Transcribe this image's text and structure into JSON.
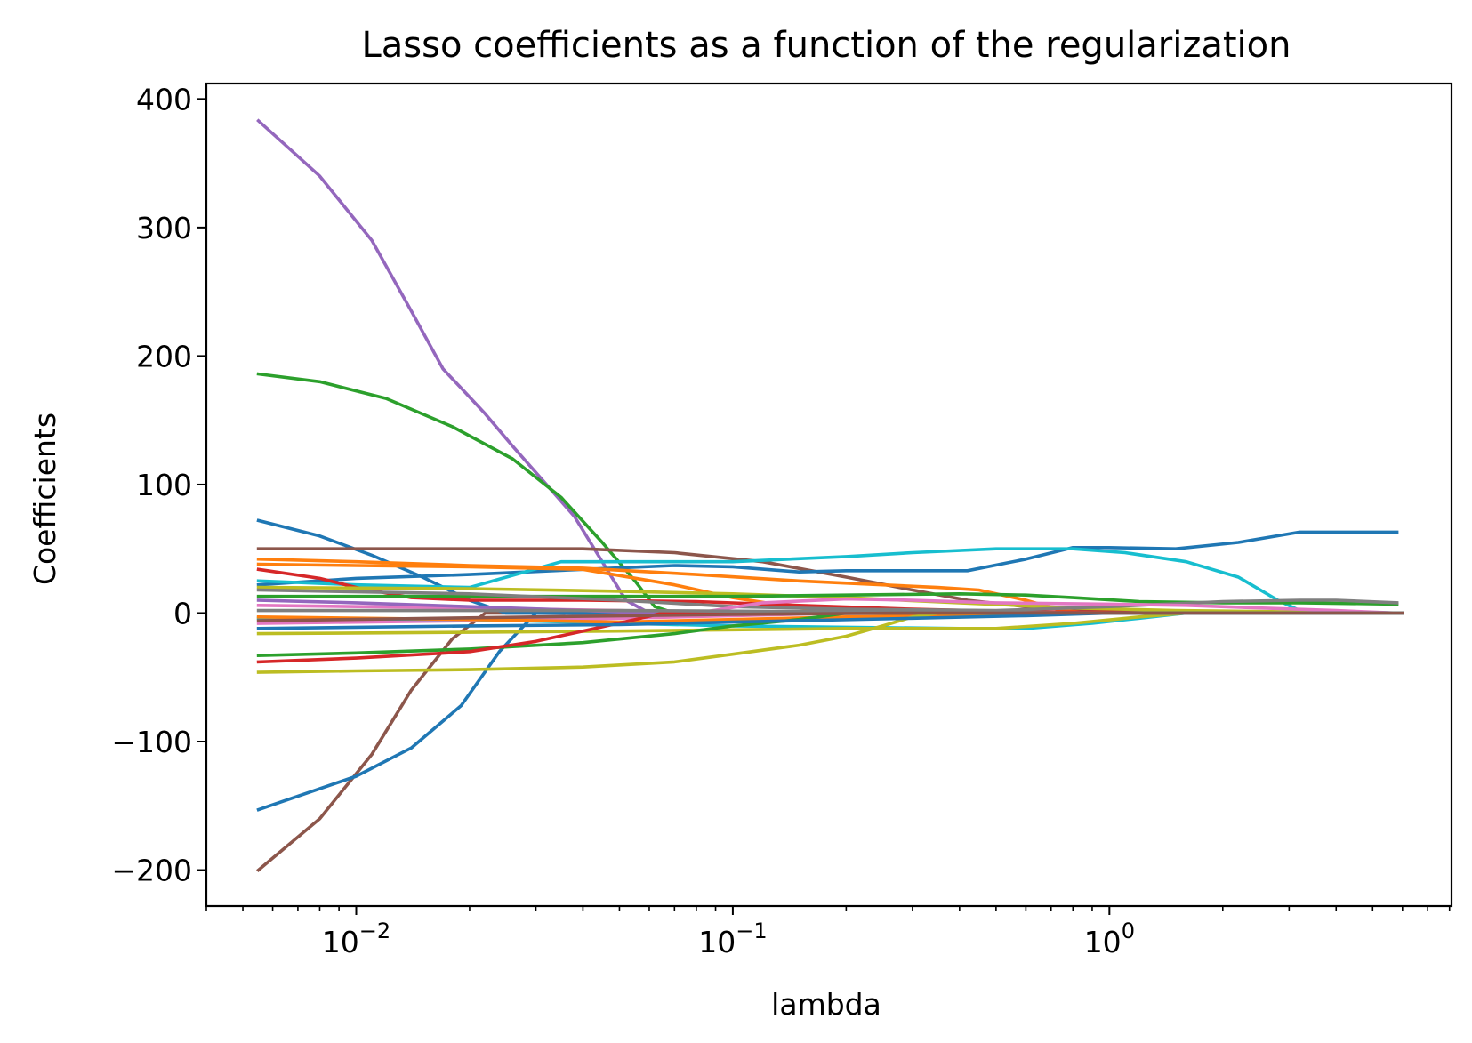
{
  "chart_data": {
    "type": "line",
    "title": "Lasso coefficients as a function of the regularization",
    "xlabel": "lambda",
    "ylabel": "Coefficients",
    "xscale": "log",
    "xlim": [
      0.004,
      8.1
    ],
    "ylim": [
      -228,
      412
    ],
    "xticks": [
      {
        "value": 0.01,
        "base": "10",
        "exp": "−2"
      },
      {
        "value": 0.1,
        "base": "10",
        "exp": "−1"
      },
      {
        "value": 1,
        "base": "10",
        "exp": "0"
      }
    ],
    "yticks": [
      {
        "value": 400,
        "label": "400"
      },
      {
        "value": 300,
        "label": "300"
      },
      {
        "value": 200,
        "label": "200"
      },
      {
        "value": 100,
        "label": "100"
      },
      {
        "value": 0,
        "label": "0"
      },
      {
        "value": -100,
        "label": "−100"
      },
      {
        "value": -200,
        "label": "−200"
      }
    ],
    "grid": false,
    "legend": "none",
    "series": [
      {
        "color": "#9467bd",
        "points": [
          [
            0.0055,
            383
          ],
          [
            0.008,
            340
          ],
          [
            0.011,
            290
          ],
          [
            0.014,
            235
          ],
          [
            0.017,
            190
          ],
          [
            0.019,
            175
          ],
          [
            0.022,
            155
          ],
          [
            0.026,
            130
          ],
          [
            0.032,
            100
          ],
          [
            0.038,
            75
          ],
          [
            0.045,
            40
          ],
          [
            0.052,
            10
          ],
          [
            0.06,
            0
          ],
          [
            6,
            0
          ]
        ]
      },
      {
        "color": "#2ca02c",
        "points": [
          [
            0.0055,
            186
          ],
          [
            0.008,
            180
          ],
          [
            0.012,
            167
          ],
          [
            0.018,
            145
          ],
          [
            0.026,
            120
          ],
          [
            0.035,
            90
          ],
          [
            0.045,
            55
          ],
          [
            0.055,
            25
          ],
          [
            0.062,
            5
          ],
          [
            0.07,
            0
          ],
          [
            6,
            0
          ]
        ]
      },
      {
        "color": "#8c564b",
        "points": [
          [
            0.0055,
            -200
          ],
          [
            0.008,
            -160
          ],
          [
            0.011,
            -110
          ],
          [
            0.014,
            -60
          ],
          [
            0.018,
            -20
          ],
          [
            0.022,
            0
          ],
          [
            6,
            0
          ]
        ]
      },
      {
        "color": "#1f77b4",
        "points": [
          [
            0.0055,
            -153
          ],
          [
            0.01,
            -127
          ],
          [
            0.014,
            -105
          ],
          [
            0.019,
            -72
          ],
          [
            0.024,
            -30
          ],
          [
            0.03,
            0
          ],
          [
            6,
            0
          ]
        ]
      },
      {
        "color": "#1f77b4",
        "points": [
          [
            0.0055,
            72
          ],
          [
            0.008,
            60
          ],
          [
            0.011,
            45
          ],
          [
            0.015,
            28
          ],
          [
            0.02,
            10
          ],
          [
            0.025,
            0
          ],
          [
            6,
            0
          ]
        ]
      },
      {
        "color": "#8c564b",
        "points": [
          [
            0.0055,
            50
          ],
          [
            0.02,
            50
          ],
          [
            0.04,
            50
          ],
          [
            0.07,
            47
          ],
          [
            0.12,
            40
          ],
          [
            0.2,
            28
          ],
          [
            0.3,
            18
          ],
          [
            0.42,
            10
          ],
          [
            0.6,
            5
          ],
          [
            1,
            2
          ],
          [
            6,
            0
          ]
        ]
      },
      {
        "color": "#1f77b4",
        "points": [
          [
            0.0055,
            22
          ],
          [
            0.01,
            27
          ],
          [
            0.02,
            30
          ],
          [
            0.04,
            34
          ],
          [
            0.07,
            37
          ],
          [
            0.1,
            36
          ],
          [
            0.15,
            32
          ],
          [
            0.2,
            33
          ],
          [
            0.3,
            33
          ],
          [
            0.42,
            33
          ],
          [
            0.6,
            42
          ],
          [
            0.8,
            51
          ],
          [
            1,
            51
          ],
          [
            1.5,
            50
          ],
          [
            2.2,
            55
          ],
          [
            3.2,
            63
          ],
          [
            5.8,
            63
          ]
        ]
      },
      {
        "color": "#17becf",
        "points": [
          [
            0.0055,
            25
          ],
          [
            0.01,
            22
          ],
          [
            0.02,
            20
          ],
          [
            0.035,
            40
          ],
          [
            0.06,
            40
          ],
          [
            0.1,
            40
          ],
          [
            0.2,
            44
          ],
          [
            0.3,
            47
          ],
          [
            0.5,
            50
          ],
          [
            0.8,
            50
          ],
          [
            1.1,
            47
          ],
          [
            1.6,
            40
          ],
          [
            2.2,
            28
          ],
          [
            2.8,
            10
          ],
          [
            3.2,
            2
          ],
          [
            5.8,
            0
          ]
        ]
      },
      {
        "color": "#ff7f0e",
        "points": [
          [
            0.0055,
            42
          ],
          [
            0.01,
            40
          ],
          [
            0.02,
            37
          ],
          [
            0.04,
            35
          ],
          [
            0.08,
            30
          ],
          [
            0.15,
            25
          ],
          [
            0.25,
            22
          ],
          [
            0.35,
            20
          ],
          [
            0.45,
            18
          ],
          [
            0.6,
            10
          ],
          [
            0.75,
            2
          ],
          [
            0.9,
            0
          ],
          [
            6,
            0
          ]
        ]
      },
      {
        "color": "#ff7f0e",
        "points": [
          [
            0.0055,
            38
          ],
          [
            0.01,
            37
          ],
          [
            0.02,
            36
          ],
          [
            0.04,
            34
          ],
          [
            0.07,
            22
          ],
          [
            0.1,
            12
          ],
          [
            0.15,
            4
          ],
          [
            0.2,
            0
          ],
          [
            6,
            0
          ]
        ]
      },
      {
        "color": "#d62728",
        "points": [
          [
            0.0055,
            34
          ],
          [
            0.008,
            27
          ],
          [
            0.01,
            20
          ],
          [
            0.014,
            12
          ],
          [
            0.02,
            10
          ],
          [
            0.04,
            10
          ],
          [
            0.08,
            9
          ],
          [
            0.15,
            6
          ],
          [
            0.3,
            3
          ],
          [
            0.6,
            1
          ],
          [
            6,
            0
          ]
        ]
      },
      {
        "color": "#bcbd22",
        "points": [
          [
            0.0055,
            20
          ],
          [
            0.02,
            19
          ],
          [
            0.05,
            17
          ],
          [
            0.1,
            15
          ],
          [
            0.2,
            12
          ],
          [
            0.4,
            8
          ],
          [
            0.8,
            4
          ],
          [
            1.5,
            2
          ],
          [
            6,
            0
          ]
        ]
      },
      {
        "color": "#2ca02c",
        "points": [
          [
            0.0055,
            13
          ],
          [
            0.02,
            13
          ],
          [
            0.05,
            13
          ],
          [
            0.1,
            13
          ],
          [
            0.2,
            14
          ],
          [
            0.4,
            15
          ],
          [
            0.6,
            14
          ],
          [
            0.8,
            12
          ],
          [
            1.2,
            9
          ],
          [
            2,
            8
          ],
          [
            3.2,
            8
          ],
          [
            5.8,
            7
          ]
        ]
      },
      {
        "color": "#7f7f7f",
        "points": [
          [
            0.0055,
            18
          ],
          [
            0.02,
            15
          ],
          [
            0.05,
            10
          ],
          [
            0.1,
            5
          ],
          [
            0.2,
            3
          ],
          [
            0.5,
            2
          ],
          [
            1,
            5
          ],
          [
            2,
            9
          ],
          [
            3.2,
            10
          ],
          [
            4,
            10
          ],
          [
            5.8,
            8
          ]
        ]
      },
      {
        "color": "#e377c2",
        "points": [
          [
            0.0055,
            6
          ],
          [
            0.02,
            4
          ],
          [
            0.05,
            2
          ],
          [
            0.08,
            0
          ],
          [
            0.12,
            8
          ],
          [
            0.2,
            11
          ],
          [
            0.3,
            10
          ],
          [
            0.5,
            8
          ],
          [
            1,
            7
          ],
          [
            1.6,
            6
          ],
          [
            2.5,
            4
          ],
          [
            4,
            2
          ],
          [
            5.8,
            0
          ]
        ]
      },
      {
        "color": "#9467bd",
        "points": [
          [
            0.0055,
            10
          ],
          [
            0.01,
            8
          ],
          [
            0.02,
            5
          ],
          [
            0.04,
            2
          ],
          [
            0.06,
            0
          ],
          [
            6,
            0
          ]
        ]
      },
      {
        "color": "#e377c2",
        "points": [
          [
            0.0055,
            -8
          ],
          [
            0.02,
            -6
          ],
          [
            0.05,
            -4
          ],
          [
            0.1,
            -2
          ],
          [
            0.2,
            0
          ],
          [
            6,
            0
          ]
        ]
      },
      {
        "color": "#17becf",
        "points": [
          [
            0.0055,
            -4
          ],
          [
            0.02,
            -5
          ],
          [
            0.05,
            -8
          ],
          [
            0.1,
            -10
          ],
          [
            0.2,
            -11
          ],
          [
            0.4,
            -12
          ],
          [
            0.6,
            -12
          ],
          [
            0.9,
            -8
          ],
          [
            1.2,
            -4
          ],
          [
            1.6,
            0
          ],
          [
            6,
            0
          ]
        ]
      },
      {
        "color": "#ff7f0e",
        "points": [
          [
            0.0055,
            -3
          ],
          [
            0.02,
            -5
          ],
          [
            0.05,
            -7
          ],
          [
            0.1,
            -5
          ],
          [
            0.2,
            -3
          ],
          [
            0.4,
            -2
          ],
          [
            0.8,
            0
          ],
          [
            6,
            0
          ]
        ]
      },
      {
        "color": "#bcbd22",
        "points": [
          [
            0.0055,
            -16
          ],
          [
            0.02,
            -15
          ],
          [
            0.05,
            -14
          ],
          [
            0.1,
            -13
          ],
          [
            0.2,
            -12
          ],
          [
            0.3,
            -12
          ],
          [
            0.5,
            -12
          ],
          [
            0.8,
            -8
          ],
          [
            1.2,
            -3
          ],
          [
            1.6,
            0
          ],
          [
            6,
            0
          ]
        ]
      },
      {
        "color": "#2ca02c",
        "points": [
          [
            0.0055,
            -33
          ],
          [
            0.01,
            -31
          ],
          [
            0.02,
            -28
          ],
          [
            0.04,
            -23
          ],
          [
            0.07,
            -16
          ],
          [
            0.1,
            -10
          ],
          [
            0.15,
            -5
          ],
          [
            0.2,
            0
          ],
          [
            6,
            0
          ]
        ]
      },
      {
        "color": "#d62728",
        "points": [
          [
            0.0055,
            -38
          ],
          [
            0.01,
            -35
          ],
          [
            0.02,
            -30
          ],
          [
            0.03,
            -22
          ],
          [
            0.04,
            -14
          ],
          [
            0.055,
            -5
          ],
          [
            0.065,
            0
          ],
          [
            6,
            0
          ]
        ]
      },
      {
        "color": "#bcbd22",
        "points": [
          [
            0.0055,
            -46
          ],
          [
            0.01,
            -45
          ],
          [
            0.02,
            -44
          ],
          [
            0.04,
            -42
          ],
          [
            0.07,
            -38
          ],
          [
            0.1,
            -32
          ],
          [
            0.15,
            -25
          ],
          [
            0.2,
            -18
          ],
          [
            0.25,
            -10
          ],
          [
            0.3,
            -3
          ],
          [
            0.35,
            0
          ],
          [
            6,
            0
          ]
        ]
      },
      {
        "color": "#7f7f7f",
        "points": [
          [
            0.0055,
            2
          ],
          [
            0.05,
            2
          ],
          [
            0.2,
            1
          ],
          [
            1,
            0
          ],
          [
            6,
            0
          ]
        ]
      },
      {
        "color": "#1f77b4",
        "points": [
          [
            0.0055,
            -12
          ],
          [
            0.02,
            -10
          ],
          [
            0.05,
            -9
          ],
          [
            0.1,
            -7
          ],
          [
            0.3,
            -4
          ],
          [
            0.6,
            -2
          ],
          [
            1,
            0
          ],
          [
            6,
            0
          ]
        ]
      },
      {
        "color": "#8c564b",
        "points": [
          [
            0.0055,
            -6
          ],
          [
            0.03,
            -3
          ],
          [
            0.1,
            -1
          ],
          [
            0.3,
            0
          ],
          [
            6,
            0
          ]
        ]
      }
    ]
  }
}
